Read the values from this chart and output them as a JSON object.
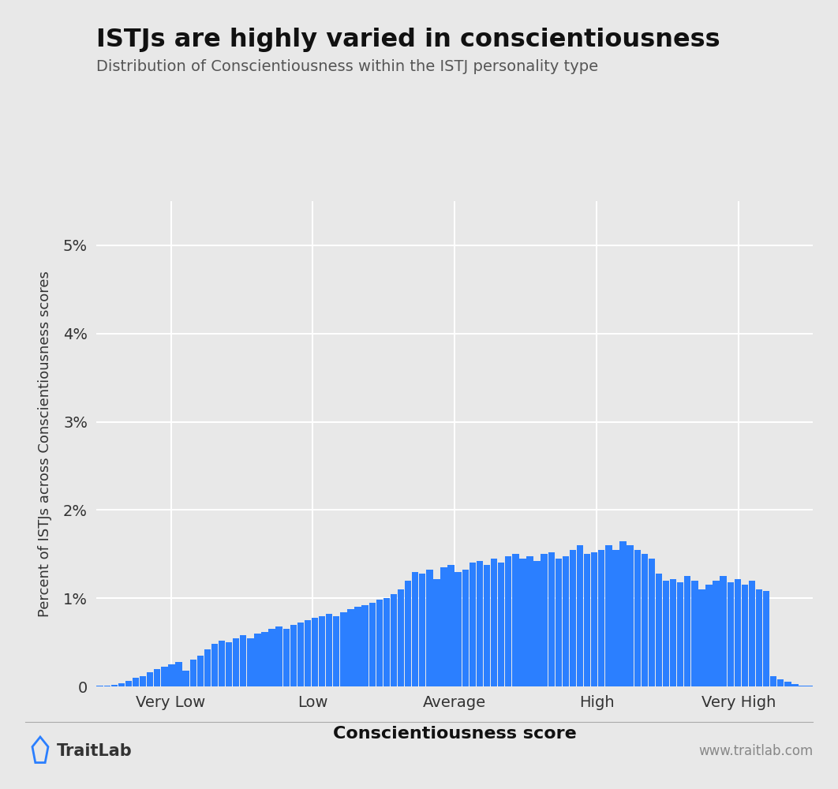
{
  "title": "ISTJs are highly varied in conscientiousness",
  "subtitle": "Distribution of Conscientiousness within the ISTJ personality type",
  "xlabel": "Conscientiousness score",
  "ylabel": "Percent of ISTJs across Conscientiousness scores",
  "background_color": "#e8e8e8",
  "bar_color": "#2b7fff",
  "ytick_labels": [
    "0",
    "1%",
    "2%",
    "3%",
    "4%",
    "5%"
  ],
  "ytick_values": [
    0,
    1,
    2,
    3,
    4,
    5
  ],
  "xtick_positions": [
    0.1,
    0.3,
    0.5,
    0.7,
    0.9
  ],
  "xtick_labels": [
    "Very Low",
    "Low",
    "Average",
    "High",
    "Very High"
  ],
  "footer_left": "TraitLab",
  "footer_right": "www.traitlab.com",
  "bar_heights": [
    0.01,
    0.01,
    0.02,
    0.04,
    0.06,
    0.1,
    0.12,
    0.16,
    0.2,
    0.22,
    0.25,
    0.28,
    0.18,
    0.3,
    0.35,
    0.42,
    0.48,
    0.52,
    0.5,
    0.55,
    0.58,
    0.55,
    0.6,
    0.62,
    0.65,
    0.68,
    0.65,
    0.7,
    0.72,
    0.75,
    0.78,
    0.8,
    0.82,
    0.8,
    0.84,
    0.88,
    0.9,
    0.92,
    0.95,
    0.98,
    1.0,
    1.05,
    1.1,
    1.2,
    1.3,
    1.28,
    1.32,
    1.22,
    1.35,
    1.38,
    1.3,
    1.32,
    1.4,
    1.42,
    1.38,
    1.45,
    1.4,
    1.48,
    1.5,
    1.45,
    1.48,
    1.42,
    1.5,
    1.52,
    1.45,
    1.48,
    1.55,
    1.6,
    1.5,
    1.52,
    1.55,
    1.6,
    1.55,
    1.65,
    1.6,
    1.55,
    1.5,
    1.45,
    1.28,
    1.2,
    1.22,
    1.18,
    1.25,
    1.2,
    1.1,
    1.15,
    1.2,
    1.25,
    1.18,
    1.22,
    1.15,
    1.2,
    1.1,
    1.08,
    0.12,
    0.08,
    0.05,
    0.03,
    0.01,
    0.005
  ]
}
